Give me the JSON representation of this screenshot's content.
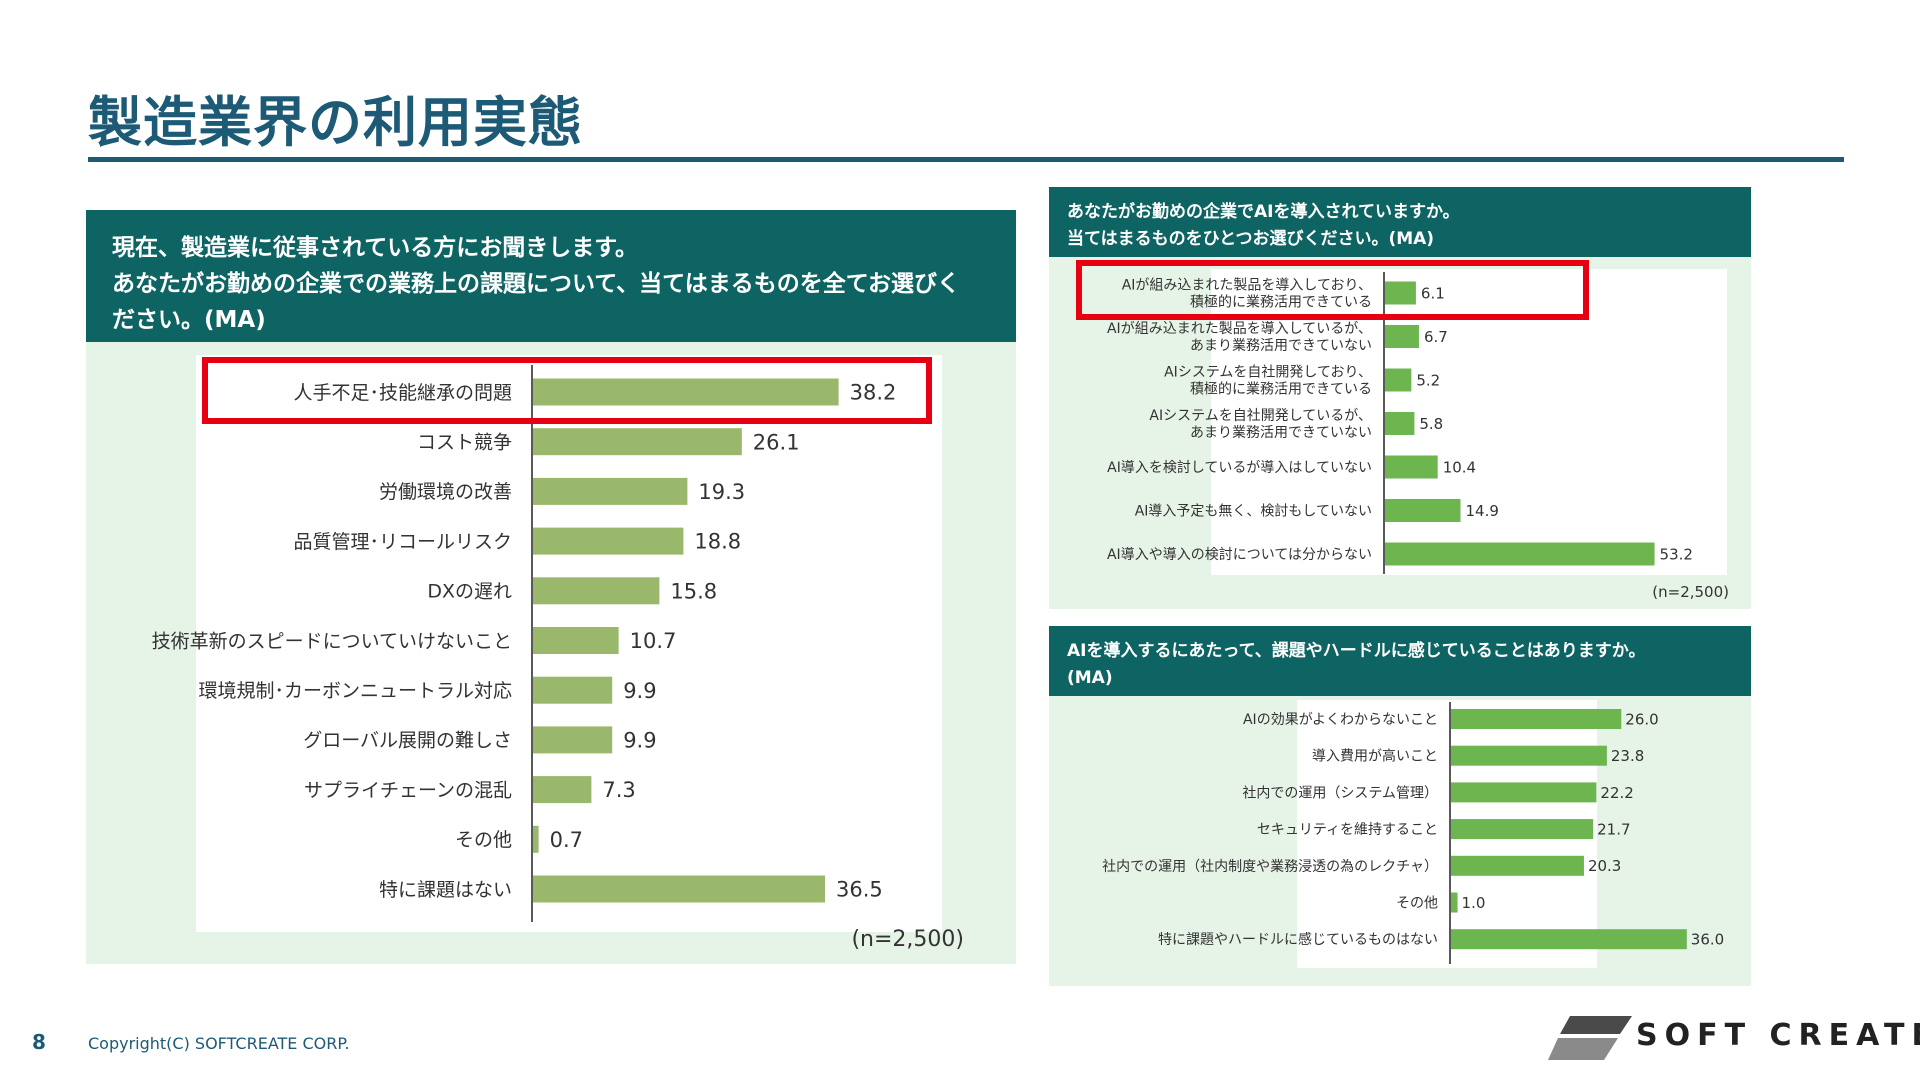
{
  "page": {
    "title": "製造業界の利用実態",
    "page_number": "8",
    "copyright": "Copyright(C) SOFTCREATE CORP.",
    "logo_text": "SOFT CREATE"
  },
  "colors": {
    "bar": "#99b86b",
    "bar_right": "#6db54f",
    "header": "#0e6363",
    "panel": "#e6f3e7",
    "highlight": "#e60012",
    "title": "#1c5a76"
  },
  "chart_data": [
    {
      "type": "bar",
      "orientation": "horizontal",
      "question_lines": [
        "現在、製造業に従事されている方にお聞きします。",
        "あなたがお勤めの企業での業務上の課題について、当てはまるものを全てお選びく",
        "ださい。(MA)"
      ],
      "categories": [
        "人手不足･技能継承の問題",
        "コスト競争",
        "労働環境の改善",
        "品質管理･リコールリスク",
        "DXの遅れ",
        "技術革新のスピードについていけないこと",
        "環境規制･カーボンニュートラル対応",
        "グローバル展開の難しさ",
        "サプライチェーンの混乱",
        "その他",
        "特に課題はない"
      ],
      "labels": [
        "38.2",
        "26.1",
        "19.3",
        "18.8",
        "15.8",
        "10.7",
        "9.9",
        "9.9",
        "7.3",
        "0.7",
        "36.5"
      ],
      "values": [
        38.2,
        26.1,
        19.3,
        18.8,
        15.8,
        10.7,
        9.9,
        9.9,
        7.3,
        0.7,
        36.5
      ],
      "xlim": [
        0,
        50
      ],
      "sample": "(n=2,500)",
      "highlighted_index": 0
    },
    {
      "type": "bar",
      "orientation": "horizontal",
      "question_lines": [
        "あなたがお勤めの企業でAIを導入されていますか。",
        "当てはまるものをひとつお選びください。(MA)"
      ],
      "categories": [
        [
          "AIが組み込まれた製品を導入しており、",
          "積極的に業務活用できている"
        ],
        [
          "AIが組み込まれた製品を導入しているが、",
          "あまり業務活用できていない"
        ],
        [
          "AIシステムを自社開発しており、",
          "積極的に業務活用できている"
        ],
        [
          "AIシステムを自社開発しているが、",
          "あまり業務活用できていない"
        ],
        [
          "AI導入を検討しているが導入はしていない"
        ],
        [
          "AI導入予定も無く、検討もしていない"
        ],
        [
          "AI導入や導入の検討については分からない"
        ]
      ],
      "labels": [
        "6.1",
        "6.7",
        "5.2",
        "5.8",
        "10.4",
        "14.9",
        "53.2"
      ],
      "values": [
        6.1,
        6.7,
        5.2,
        5.8,
        10.4,
        14.9,
        53.2
      ],
      "xlim": [
        0,
        60
      ],
      "sample": "(n=2,500)",
      "highlighted_index": 0
    },
    {
      "type": "bar",
      "orientation": "horizontal",
      "question_lines": [
        "AIを導入するにあたって、課題やハードルに感じていることはありますか。",
        "(MA)"
      ],
      "categories": [
        "AIの効果がよくわからないこと",
        "導入費用が高いこと",
        "社内での運用（システム管理）",
        "セキュリティを維持すること",
        "社内での運用（社内制度や業務浸透の為のレクチャ）",
        "その他",
        "特に課題やハードルに感じているものはない"
      ],
      "labels": [
        "26.0",
        "23.8",
        "22.2",
        "21.7",
        "20.3",
        "1.0",
        "36.0"
      ],
      "values": [
        26.0,
        23.8,
        22.2,
        21.7,
        20.3,
        1.0,
        36.0
      ],
      "xlim": [
        0,
        40
      ]
    }
  ]
}
